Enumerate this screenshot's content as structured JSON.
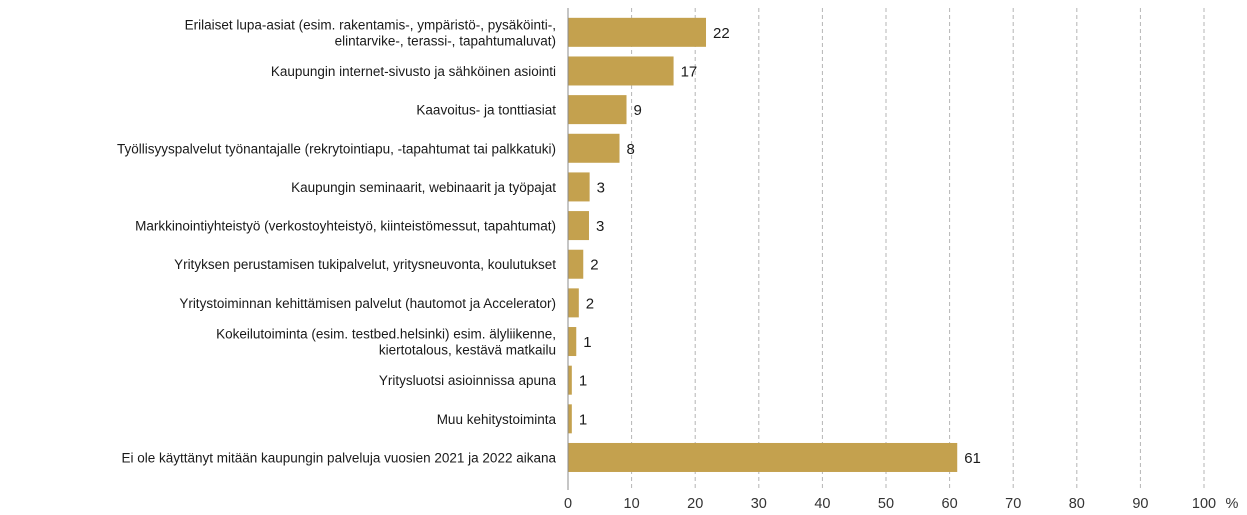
{
  "chart_data": {
    "type": "bar",
    "orientation": "horizontal",
    "categories": [
      [
        "Erilaiset lupa-asiat (esim. rakentamis-, ympäristö-, pysäköinti-,",
        "elintarvike-, terassi-, tapahtumaluvat)"
      ],
      [
        "Kaupungin internet-sivusto ja sähköinen asiointi"
      ],
      [
        "Kaavoitus- ja tonttiasiat"
      ],
      [
        "Työllisyyspalvelut työnantajalle (rekrytointiapu, -tapahtumat tai palkkatuki)"
      ],
      [
        "Kaupungin seminaarit, webinaarit ja työpajat"
      ],
      [
        "Markkinointiyhteistyö (verkostoyhteistyö, kiinteistömessut, tapahtumat)"
      ],
      [
        "Yrityksen perustamisen tukipalvelut, yritysneuvonta, koulutukset"
      ],
      [
        "Yritystoiminnan kehittämisen palvelut (hautomot ja Accelerator)"
      ],
      [
        "Kokeilutoiminta (esim. testbed.helsinki) esim. älyliikenne,",
        "kiertotalous, kestävä matkailu"
      ],
      [
        "Yritysluotsi asioinnissa apuna"
      ],
      [
        "Muu kehitystoiminta"
      ],
      [
        "Ei ole käyttänyt mitään kaupungin palveluja vuosien 2021 ja 2022 aikana"
      ]
    ],
    "values": [
      21.7,
      16.6,
      9.2,
      8.1,
      3.4,
      3.3,
      2.4,
      1.7,
      1.3,
      0.6,
      0.6,
      61.2
    ],
    "value_labels": [
      "22",
      "17",
      "9",
      "8",
      "3",
      "3",
      "2",
      "2",
      "1",
      "1",
      "1",
      "61"
    ],
    "xlim": [
      0,
      100
    ],
    "xticks": [
      0,
      10,
      20,
      30,
      40,
      50,
      60,
      70,
      80,
      90,
      100
    ],
    "x_unit": "%",
    "grid": "vertical-dashed",
    "colors": {
      "bar": "#c4a14e",
      "grid": "#b5b5b5",
      "axis": "#8c8c8c"
    }
  }
}
